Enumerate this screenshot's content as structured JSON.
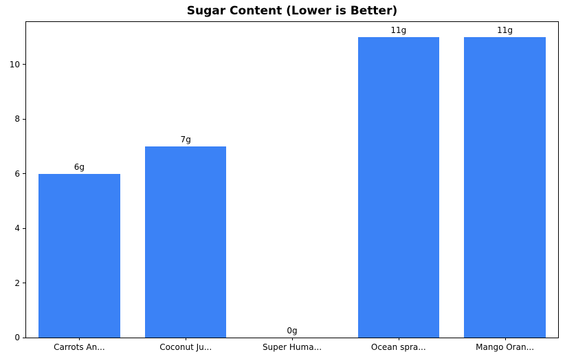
{
  "chart_data": {
    "type": "bar",
    "title": "Sugar Content (Lower is Better)",
    "categories": [
      "Carrots An...",
      "Coconut Ju...",
      "Super Huma...",
      "Ocean spra...",
      "Mango Oran..."
    ],
    "values": [
      6,
      7,
      0,
      11,
      11
    ],
    "bar_labels": [
      "6g",
      "7g",
      "0g",
      "11g",
      "11g"
    ],
    "yticks": [
      0,
      2,
      4,
      6,
      8,
      10
    ],
    "ylim": [
      0,
      11.55
    ],
    "xlabel": "",
    "ylabel": "",
    "bar_color": "#3b82f6",
    "axis_color": "#000000",
    "legend": "none",
    "grid": "off"
  }
}
